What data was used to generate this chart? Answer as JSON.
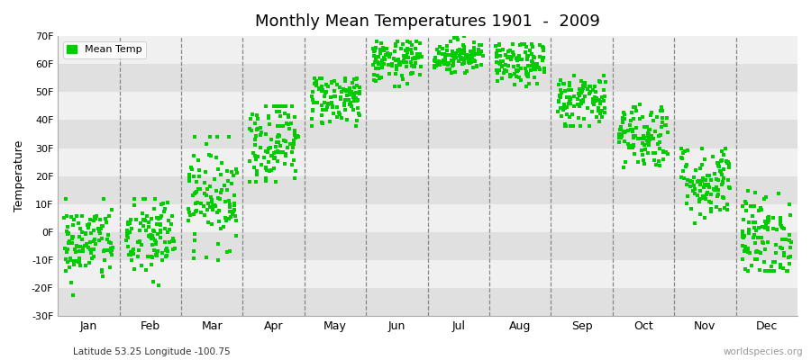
{
  "title": "Monthly Mean Temperatures 1901  -  2009",
  "ylabel": "Temperature",
  "subtitle": "Latitude 53.25 Longitude -100.75",
  "watermark": "worldspecies.org",
  "ylim": [
    -30,
    70
  ],
  "yticks": [
    -30,
    -20,
    -10,
    0,
    10,
    20,
    30,
    40,
    50,
    60,
    70
  ],
  "ytick_labels": [
    "-30F",
    "-20F",
    "-10F",
    "0F",
    "10F",
    "20F",
    "30F",
    "40F",
    "50F",
    "60F",
    "70F"
  ],
  "months": [
    "Jan",
    "Feb",
    "Mar",
    "Apr",
    "May",
    "Jun",
    "Jul",
    "Aug",
    "Sep",
    "Oct",
    "Nov",
    "Dec"
  ],
  "dot_color": "#00cc00",
  "background_color": "#ffffff",
  "plot_bg_color": "#f5f5f5",
  "band_color_light": "#f0f0f0",
  "band_color_dark": "#e0e0e0",
  "n_years": 109,
  "monthly_means": [
    -4,
    -2,
    13,
    33,
    48,
    61,
    63,
    60,
    47,
    35,
    18,
    -2
  ],
  "monthly_stds": [
    7,
    8,
    9,
    8,
    5,
    4,
    3,
    4,
    5,
    6,
    7,
    8
  ],
  "monthly_mins": [
    -26,
    -24,
    -10,
    18,
    38,
    52,
    57,
    52,
    38,
    23,
    3,
    -14
  ],
  "monthly_maxs": [
    12,
    12,
    34,
    45,
    55,
    68,
    70,
    67,
    59,
    50,
    30,
    20
  ]
}
